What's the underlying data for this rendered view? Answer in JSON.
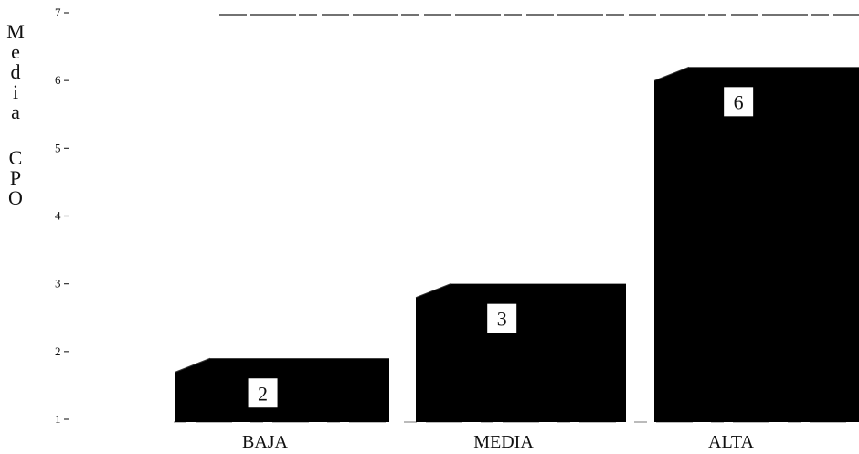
{
  "chart_data": {
    "type": "bar",
    "style": "3d",
    "categories": [
      "BAJA",
      "MEDIA",
      "ALTA"
    ],
    "values": [
      2,
      3,
      6
    ],
    "data_labels": [
      "2",
      "3",
      "6"
    ],
    "bar_tops": [
      1.9,
      3.0,
      6.2
    ],
    "ylabel": "Media CPO",
    "ylabel_lines": [
      "M",
      "e",
      "d",
      "i",
      "a",
      "",
      "C",
      "P",
      "O"
    ],
    "yticks": [
      1,
      2,
      3,
      4,
      5,
      6,
      7
    ],
    "ylim": [
      1,
      7
    ],
    "grid": false,
    "legend": "none",
    "colors": {
      "bar": "#000000",
      "label_box": "#ffffff",
      "text": "#111111"
    }
  }
}
